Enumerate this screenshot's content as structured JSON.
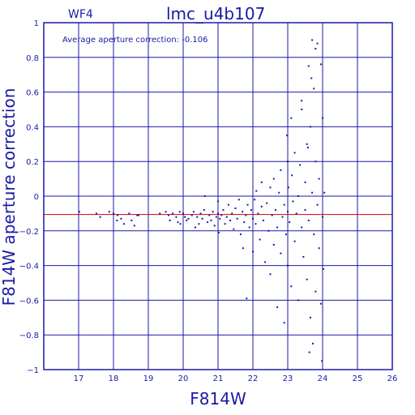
{
  "chart_data": {
    "type": "scatter",
    "title": "lmc_u4b107",
    "panel_label": "WF4",
    "annotation": "Average aperture correction: -0.106",
    "xlabel": "F814W",
    "ylabel": "F814W aperture correction",
    "xlim": [
      16,
      26
    ],
    "ylim": [
      -1,
      1
    ],
    "xticks": [
      "17",
      "18",
      "19",
      "20",
      "21",
      "22",
      "23",
      "24",
      "25",
      "26"
    ],
    "yticks": [
      "1",
      "0.8",
      "0.6",
      "0.4",
      "0.2",
      "0",
      "−0.2",
      "−0.4",
      "−0.6",
      "−0.8",
      "−1"
    ],
    "grid": true,
    "reference_line_y": -0.106,
    "colors": {
      "axes": "#1a1aa6",
      "points": "#1a1aa6",
      "reference_line": "#cc0000"
    },
    "series": [
      {
        "points": [
          [
            17.02,
            -0.09
          ],
          [
            17.51,
            -0.1
          ],
          [
            17.62,
            -0.12
          ],
          [
            17.88,
            -0.09
          ],
          [
            18.0,
            -0.1
          ],
          [
            18.12,
            -0.11
          ],
          [
            18.22,
            -0.13
          ],
          [
            18.3,
            -0.16
          ],
          [
            18.52,
            -0.14
          ],
          [
            18.6,
            -0.17
          ],
          [
            18.68,
            -0.11
          ],
          [
            18.72,
            -0.11
          ],
          [
            18.45,
            -0.1
          ],
          [
            18.1,
            -0.14
          ],
          [
            19.33,
            -0.1
          ],
          [
            19.5,
            -0.09
          ],
          [
            19.58,
            -0.11
          ],
          [
            19.62,
            -0.14
          ],
          [
            19.7,
            -0.1
          ],
          [
            19.8,
            -0.12
          ],
          [
            19.85,
            -0.15
          ],
          [
            19.9,
            -0.09
          ],
          [
            19.92,
            -0.16
          ],
          [
            20.0,
            -0.1
          ],
          [
            20.05,
            -0.12
          ],
          [
            20.1,
            -0.14
          ],
          [
            20.15,
            -0.13
          ],
          [
            20.25,
            -0.11
          ],
          [
            20.3,
            -0.09
          ],
          [
            20.35,
            -0.18
          ],
          [
            20.4,
            -0.12
          ],
          [
            20.45,
            -0.16
          ],
          [
            20.5,
            -0.1
          ],
          [
            20.55,
            -0.13
          ],
          [
            20.6,
            -0.08
          ],
          [
            20.62,
            0.0
          ],
          [
            20.7,
            -0.15
          ],
          [
            20.75,
            -0.11
          ],
          [
            20.8,
            -0.14
          ],
          [
            20.85,
            -0.09
          ],
          [
            20.9,
            -0.17
          ],
          [
            20.95,
            -0.12
          ],
          [
            21.0,
            -0.1
          ],
          [
            21.05,
            -0.13
          ],
          [
            21.0,
            -0.03
          ],
          [
            21.02,
            -0.21
          ],
          [
            21.1,
            -0.11
          ],
          [
            21.15,
            -0.08
          ],
          [
            21.2,
            -0.16
          ],
          [
            21.25,
            -0.12
          ],
          [
            21.3,
            -0.05
          ],
          [
            21.35,
            -0.14
          ],
          [
            21.4,
            -0.1
          ],
          [
            21.45,
            -0.19
          ],
          [
            21.5,
            -0.07
          ],
          [
            21.55,
            -0.13
          ],
          [
            21.6,
            -0.02
          ],
          [
            21.65,
            -0.22
          ],
          [
            21.7,
            -0.09
          ],
          [
            21.72,
            -0.3
          ],
          [
            21.75,
            -0.15
          ],
          [
            21.8,
            -0.11
          ],
          [
            21.82,
            -0.59
          ],
          [
            21.85,
            -0.05
          ],
          [
            21.9,
            -0.18
          ],
          [
            21.95,
            -0.08
          ],
          [
            22.0,
            -0.13
          ],
          [
            22.0,
            -0.32
          ],
          [
            22.05,
            -0.02
          ],
          [
            22.08,
            -0.16
          ],
          [
            22.1,
            0.03
          ],
          [
            22.15,
            -0.1
          ],
          [
            22.2,
            -0.25
          ],
          [
            22.25,
            -0.06
          ],
          [
            22.25,
            0.08
          ],
          [
            22.3,
            -0.14
          ],
          [
            22.35,
            -0.38
          ],
          [
            22.4,
            -0.04
          ],
          [
            22.45,
            -0.2
          ],
          [
            22.5,
            0.05
          ],
          [
            22.5,
            -0.45
          ],
          [
            22.55,
            -0.11
          ],
          [
            22.6,
            -0.28
          ],
          [
            22.6,
            0.1
          ],
          [
            22.65,
            -0.08
          ],
          [
            22.7,
            -0.18
          ],
          [
            22.7,
            -0.64
          ],
          [
            22.75,
            0.02
          ],
          [
            22.8,
            -0.33
          ],
          [
            22.8,
            0.15
          ],
          [
            22.85,
            -0.12
          ],
          [
            22.9,
            -0.05
          ],
          [
            22.9,
            -0.73
          ],
          [
            22.95,
            -0.22
          ],
          [
            23.0,
            0.2
          ],
          [
            23.0,
            -0.4
          ],
          [
            23.0,
            -0.09
          ],
          [
            22.98,
            0.35
          ],
          [
            23.02,
            0.05
          ],
          [
            23.05,
            -0.15
          ],
          [
            23.1,
            -0.52
          ],
          [
            23.1,
            0.45
          ],
          [
            23.12,
            0.12
          ],
          [
            23.15,
            -0.03
          ],
          [
            23.2,
            -0.26
          ],
          [
            23.2,
            0.25
          ],
          [
            23.25,
            -0.1
          ],
          [
            23.3,
            0.0
          ],
          [
            23.3,
            -0.6
          ],
          [
            23.35,
            0.18
          ],
          [
            23.4,
            -0.18
          ],
          [
            23.4,
            0.55
          ],
          [
            23.45,
            -0.35
          ],
          [
            23.5,
            0.08
          ],
          [
            23.5,
            -0.08
          ],
          [
            23.55,
            0.3
          ],
          [
            23.55,
            -0.48
          ],
          [
            23.6,
            0.75
          ],
          [
            23.6,
            -0.14
          ],
          [
            23.65,
            0.4
          ],
          [
            23.65,
            -0.7
          ],
          [
            23.7,
            0.9
          ],
          [
            23.7,
            0.02
          ],
          [
            23.72,
            -0.85
          ],
          [
            23.75,
            -0.22
          ],
          [
            23.75,
            0.62
          ],
          [
            23.8,
            0.2
          ],
          [
            23.8,
            -0.55
          ],
          [
            23.85,
            -0.05
          ],
          [
            23.85,
            0.88
          ],
          [
            23.9,
            -0.3
          ],
          [
            23.9,
            0.1
          ],
          [
            23.95,
            0.76
          ],
          [
            23.95,
            -0.62
          ],
          [
            23.98,
            -0.95
          ],
          [
            24.0,
            -0.12
          ],
          [
            24.0,
            0.45
          ],
          [
            24.02,
            -0.42
          ],
          [
            24.05,
            0.02
          ],
          [
            23.62,
            -0.9
          ],
          [
            23.68,
            0.68
          ],
          [
            23.8,
            0.85
          ],
          [
            23.58,
            0.28
          ],
          [
            23.4,
            0.5
          ]
        ]
      }
    ]
  }
}
